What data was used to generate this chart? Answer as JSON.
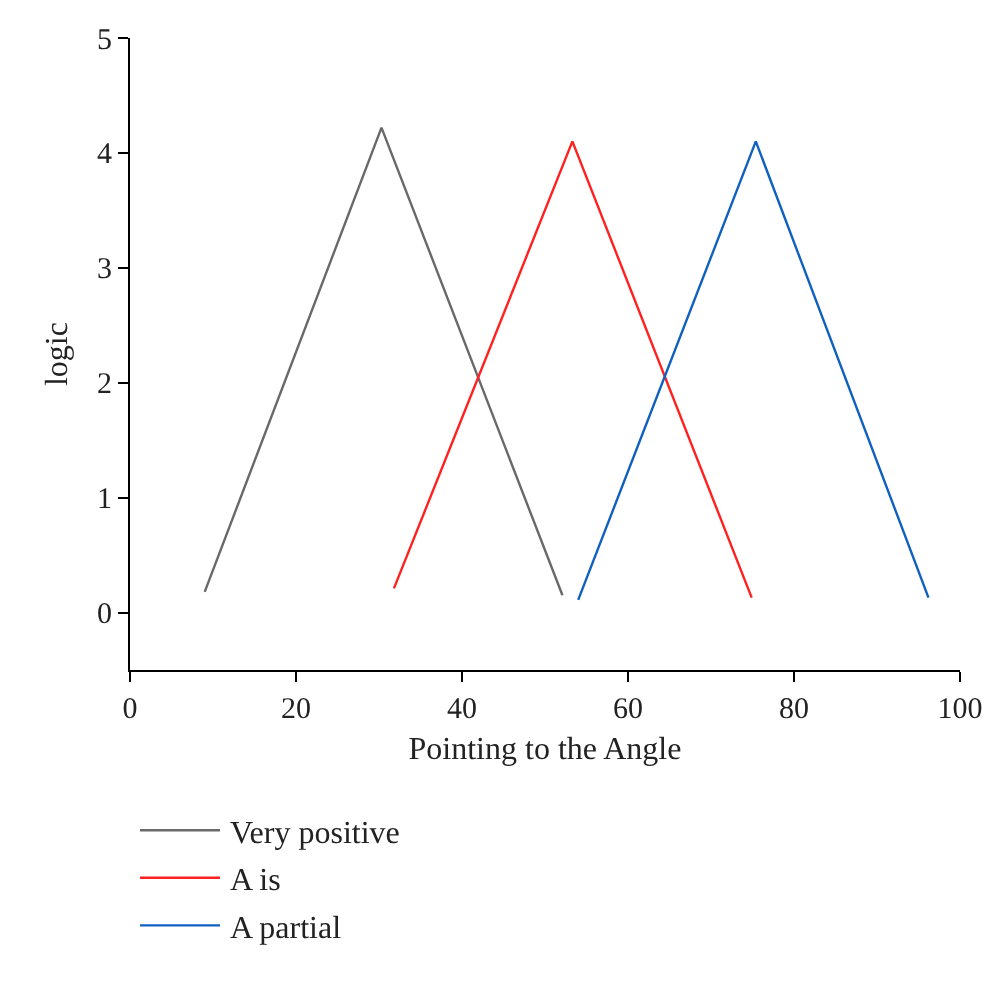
{
  "chart_data": {
    "type": "line",
    "xlabel": "Pointing to the Angle",
    "ylabel": "logic",
    "xlim": [
      0,
      100
    ],
    "xticks": [
      0,
      20,
      40,
      60,
      80,
      100
    ],
    "ylim": [
      -0.5,
      5
    ],
    "yticks": [
      0,
      1,
      2,
      3,
      4,
      5
    ],
    "legend": "bottom",
    "marker": "none",
    "line_style": "solid",
    "series": [
      {
        "name": "Very positive",
        "color": "#696969",
        "x": [
          9.0,
          30.3,
          52.1
        ],
        "values": [
          0.18,
          4.22,
          0.15
        ]
      },
      {
        "name": "A is",
        "color": "#ff2020",
        "x": [
          31.8,
          53.3,
          74.9
        ],
        "values": [
          0.21,
          4.1,
          0.13
        ]
      },
      {
        "name": "A partial",
        "color": "#1060c0",
        "x": [
          54.0,
          75.4,
          96.2
        ],
        "values": [
          0.11,
          4.1,
          0.13
        ]
      }
    ]
  }
}
